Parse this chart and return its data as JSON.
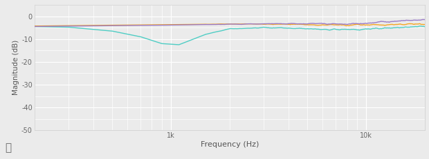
{
  "xlabel": "Frequency (Hz)",
  "ylabel": "Magnitude (dB)",
  "xlim": [
    200,
    20000
  ],
  "ylim": [
    -50,
    5
  ],
  "yticks": [
    0,
    -10,
    -20,
    -30,
    -40,
    -50
  ],
  "background_color": "#ebebeb",
  "plot_bg_color": "#ebebeb",
  "grid_color": "#ffffff",
  "line_on_axis": {
    "color": "#9b7cc7"
  },
  "line_h20": {
    "color": "#f5a623"
  },
  "line_v20": {
    "color": "#4ecdc4"
  }
}
